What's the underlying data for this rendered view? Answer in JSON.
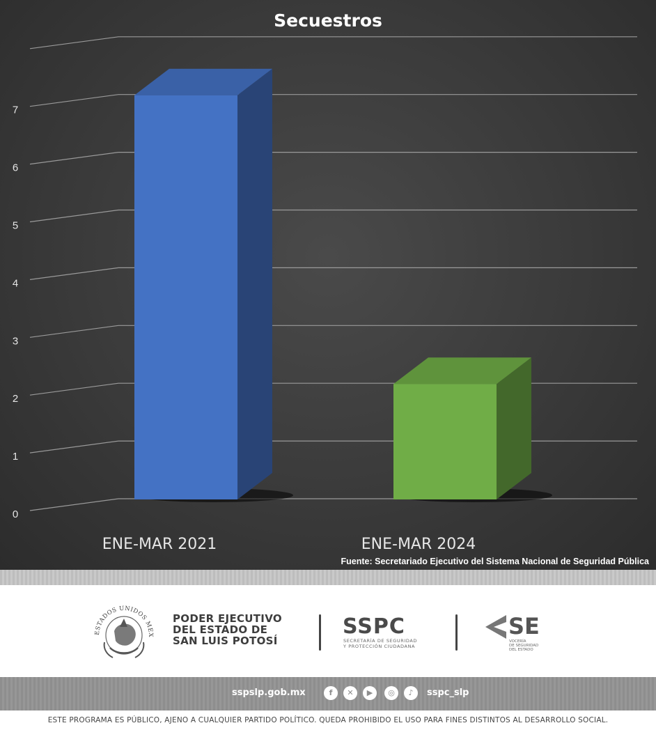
{
  "chart_data": {
    "type": "bar",
    "title": "Secuestros",
    "categories": [
      "ENE-MAR 2021",
      "ENE-MAR 2024"
    ],
    "values": [
      7,
      2
    ],
    "yticks": [
      "0",
      "1",
      "2",
      "3",
      "4",
      "5",
      "6",
      "7"
    ],
    "ylim": [
      0,
      8
    ],
    "grid": true,
    "style": "3d-column",
    "colors": [
      "#4472C4",
      "#70AD47"
    ],
    "xlabel": "",
    "ylabel": ""
  },
  "source_note": "Fuente: Secretariado Ejecutivo del Sistema Nacional de Seguridad Pública",
  "footer": {
    "government": {
      "seal_icon": "mexican-coat-of-arms-seal",
      "seal_lettering": "ESTADOS UNIDOS MEXICANOS",
      "name_lines": [
        "PODER EJECUTIVO",
        "DEL ESTADO DE",
        "SAN LUIS POTOSÍ"
      ]
    },
    "sspc": {
      "acronym": "SSPC",
      "subtitle_lines": [
        "SECRETARÍA DE SEGURIDAD",
        "Y PROTECCIÓN CIUDADANA"
      ]
    },
    "vocero": {
      "acronym": "SE",
      "subtitle_lines": [
        "VOCERÍA",
        "DE SEGURIDAD",
        "DEL ESTADO"
      ]
    },
    "website": "sspslp.gob.mx",
    "social_icons": [
      "facebook-icon",
      "x-icon",
      "youtube-icon",
      "instagram-icon",
      "tiktok-icon"
    ],
    "handle": "sspc_slp",
    "disclaimer": "ESTE PROGRAMA ES PÚBLICO, AJENO A CUALQUIER  PARTIDO POLÍTICO. QUEDA PROHIBIDO EL USO PARA FINES DISTINTOS AL DESARROLLO SOCIAL."
  }
}
